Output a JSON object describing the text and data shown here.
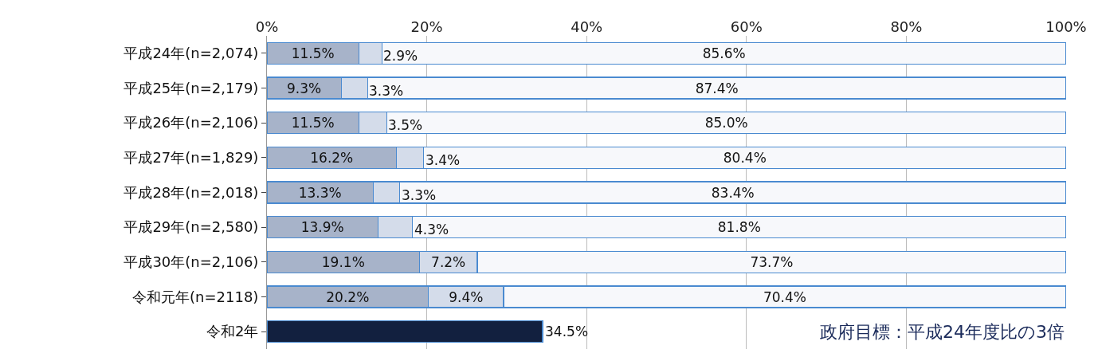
{
  "chart_data": {
    "type": "bar",
    "orientation": "horizontal",
    "stacked": true,
    "categories": [
      "平成24年(n=2,074)",
      "平成25年(n=2,179)",
      "平成26年(n=2,106)",
      "平成27年(n=1,829)",
      "平成28年(n=2,018)",
      "平成29年(n=2,580)",
      "平成30年(n=2,106)",
      "令和元年(n=2118)",
      "令和2年"
    ],
    "series": [
      {
        "colors": [
          "#a7b3c9",
          "#a7b3c9",
          "#a7b3c9",
          "#a7b3c9",
          "#a7b3c9",
          "#a7b3c9",
          "#a7b3c9",
          "#a7b3c9",
          "#12203f"
        ],
        "values": [
          11.5,
          9.3,
          11.5,
          16.2,
          13.3,
          13.9,
          19.1,
          20.2,
          34.5
        ],
        "value_labels": [
          "11.5%",
          "9.3%",
          "11.5%",
          "16.2%",
          "13.3%",
          "13.9%",
          "19.1%",
          "20.2%",
          "34.5%"
        ]
      },
      {
        "color": "#d4dcea",
        "values": [
          2.9,
          3.3,
          3.5,
          3.4,
          3.3,
          4.3,
          7.2,
          9.4,
          null
        ],
        "value_labels": [
          "2.9%",
          "3.3%",
          "3.5%",
          "3.4%",
          "3.3%",
          "4.3%",
          "7.2%",
          "9.4%",
          null
        ]
      },
      {
        "color": "#f7f8fb",
        "values": [
          85.6,
          87.4,
          85.0,
          80.4,
          83.4,
          81.8,
          73.7,
          70.4,
          null
        ],
        "value_labels": [
          "85.6%",
          "87.4%",
          "85.0%",
          "80.4%",
          "83.4%",
          "81.8%",
          "73.7%",
          "70.4%",
          null
        ]
      }
    ],
    "xlim": [
      0,
      100
    ],
    "xticks": [
      {
        "value": 0,
        "label": "0%"
      },
      {
        "value": 20,
        "label": "20%"
      },
      {
        "value": 40,
        "label": "40%"
      },
      {
        "value": 60,
        "label": "60%"
      },
      {
        "value": 80,
        "label": "80%"
      },
      {
        "value": 100,
        "label": "100%"
      }
    ],
    "grid": "x",
    "legend": false,
    "annotations": [
      "政府目標：平成24年度比の3倍"
    ]
  }
}
